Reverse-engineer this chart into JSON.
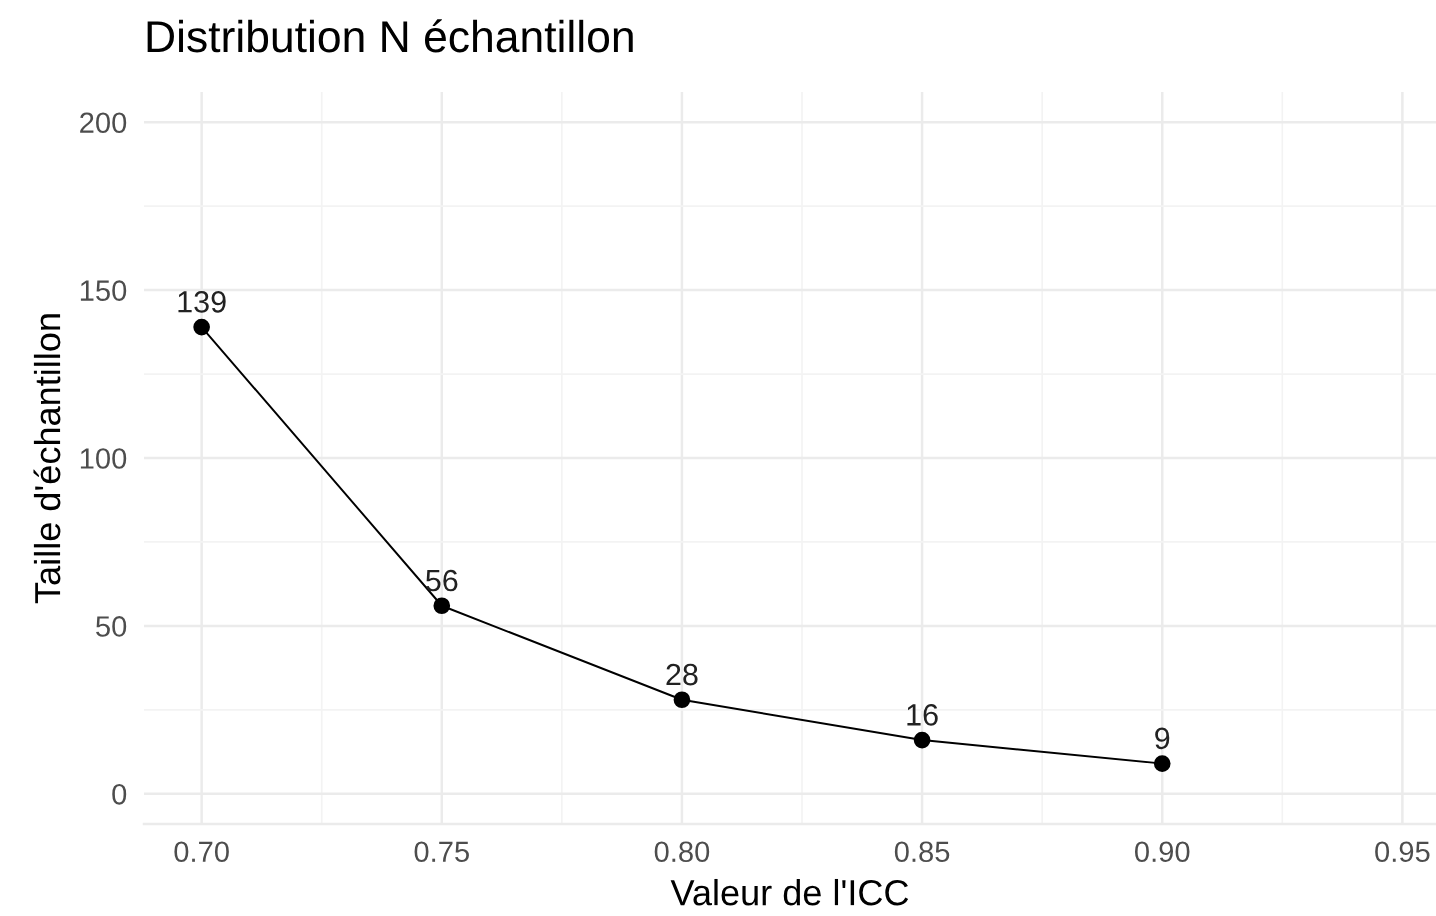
{
  "chart_data": {
    "type": "line",
    "title": "Distribution N échantillon",
    "xlabel": "Valeur de l'ICC",
    "ylabel": "Taille d'échantillon",
    "x": [
      0.7,
      0.75,
      0.8,
      0.85,
      0.9
    ],
    "series": [
      {
        "color": "#000000",
        "values": [
          139,
          56,
          28,
          16,
          9
        ]
      }
    ],
    "xlim": [
      0.688,
      0.957
    ],
    "xticks": [
      {
        "value": 0.7,
        "label": "0.70"
      },
      {
        "value": 0.75,
        "label": "0.75"
      },
      {
        "value": 0.8,
        "label": "0.80"
      },
      {
        "value": 0.85,
        "label": "0.85"
      },
      {
        "value": 0.9,
        "label": "0.90"
      },
      {
        "value": 0.95,
        "label": "0.95"
      }
    ],
    "ylim": [
      -9,
      209
    ],
    "yticks": [
      0,
      50,
      100,
      150,
      200
    ],
    "grid": true,
    "marker": "circle",
    "line_style": "solid",
    "data_labels": true,
    "legend": false
  }
}
